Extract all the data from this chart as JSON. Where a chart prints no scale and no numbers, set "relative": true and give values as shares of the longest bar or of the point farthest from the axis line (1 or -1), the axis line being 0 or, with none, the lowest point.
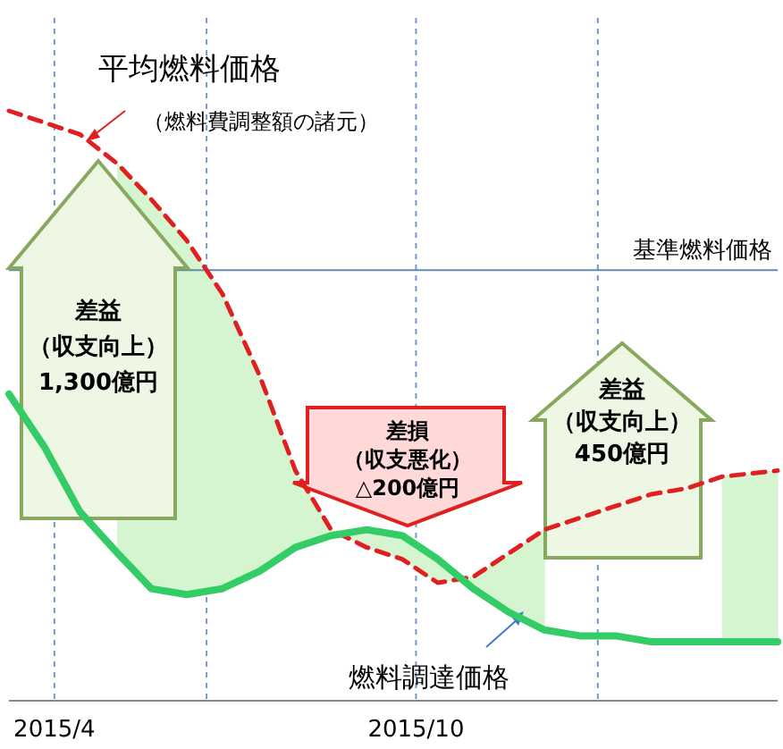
{
  "chart_data": {
    "type": "line",
    "relative": true,
    "x": [
      "2015-03-09",
      "2015-03-27",
      "2015-04-14",
      "2015-05-03",
      "2015-05-20",
      "2015-06-07",
      "2015-06-25",
      "2015-07-14",
      "2015-08-01",
      "2015-08-19",
      "2015-09-06",
      "2015-09-24",
      "2015-10-12",
      "2015-10-30",
      "2015-11-17",
      "2015-12-05",
      "2015-12-23",
      "2016-01-10",
      "2016-01-28",
      "2016-02-15",
      "2016-03-04",
      "2016-04-01"
    ],
    "xlim": [
      "2015-03-09",
      "2016-04-01"
    ],
    "xticks": [
      {
        "value": "2015-04-01",
        "label": "2015/4"
      },
      {
        "value": "2015-06-17",
        "label": null
      },
      {
        "value": "2015-10-01",
        "label": "2015/10"
      },
      {
        "value": "2016-01-01",
        "label": null
      }
    ],
    "grid": "x",
    "legend": false,
    "series": [
      {
        "name": "平均燃料価格",
        "color": "#e02020",
        "line_style": "dashed",
        "values": [
          1.0,
          0.98,
          0.96,
          0.91,
          0.85,
          0.78,
          0.69,
          0.55,
          0.39,
          0.29,
          0.26,
          0.24,
          0.2,
          0.21,
          0.25,
          0.29,
          0.31,
          0.33,
          0.35,
          0.36,
          0.38,
          0.39
        ],
        "upper": [
          null,
          null,
          null,
          0.91,
          0.85,
          0.78,
          0.69,
          0.55,
          0.39,
          0.29,
          0.26,
          0.24,
          0.2,
          0.21,
          0.25,
          0.29,
          null,
          null,
          null,
          null,
          0.38,
          0.39
        ],
        "lower": [
          null,
          null,
          null,
          0.25,
          0.19,
          0.18,
          0.19,
          0.22,
          0.26,
          0.28,
          0.29,
          0.28,
          0.24,
          0.19,
          0.15,
          0.12,
          null,
          null,
          null,
          null,
          0.1,
          0.1
        ]
      },
      {
        "name": "燃料調達価格",
        "color": "#33cc66",
        "line_style": "solid",
        "values": [
          0.52,
          0.43,
          0.32,
          0.25,
          0.19,
          0.18,
          0.19,
          0.22,
          0.26,
          0.28,
          0.29,
          0.28,
          0.24,
          0.19,
          0.15,
          0.12,
          0.11,
          0.11,
          0.1,
          0.1,
          0.1,
          0.1
        ]
      }
    ],
    "ref_lines": [
      {
        "axis": "y",
        "value": 0.73,
        "label": "基準燃料価格",
        "color": "#6688aa"
      }
    ],
    "annotations": [
      "（燃料費調整額の諸元）",
      "差益",
      "（収支向上）",
      "1,300億円",
      "差損",
      "（収支悪化）",
      "△200億円",
      "差益",
      "（収支向上）",
      "450億円"
    ]
  }
}
